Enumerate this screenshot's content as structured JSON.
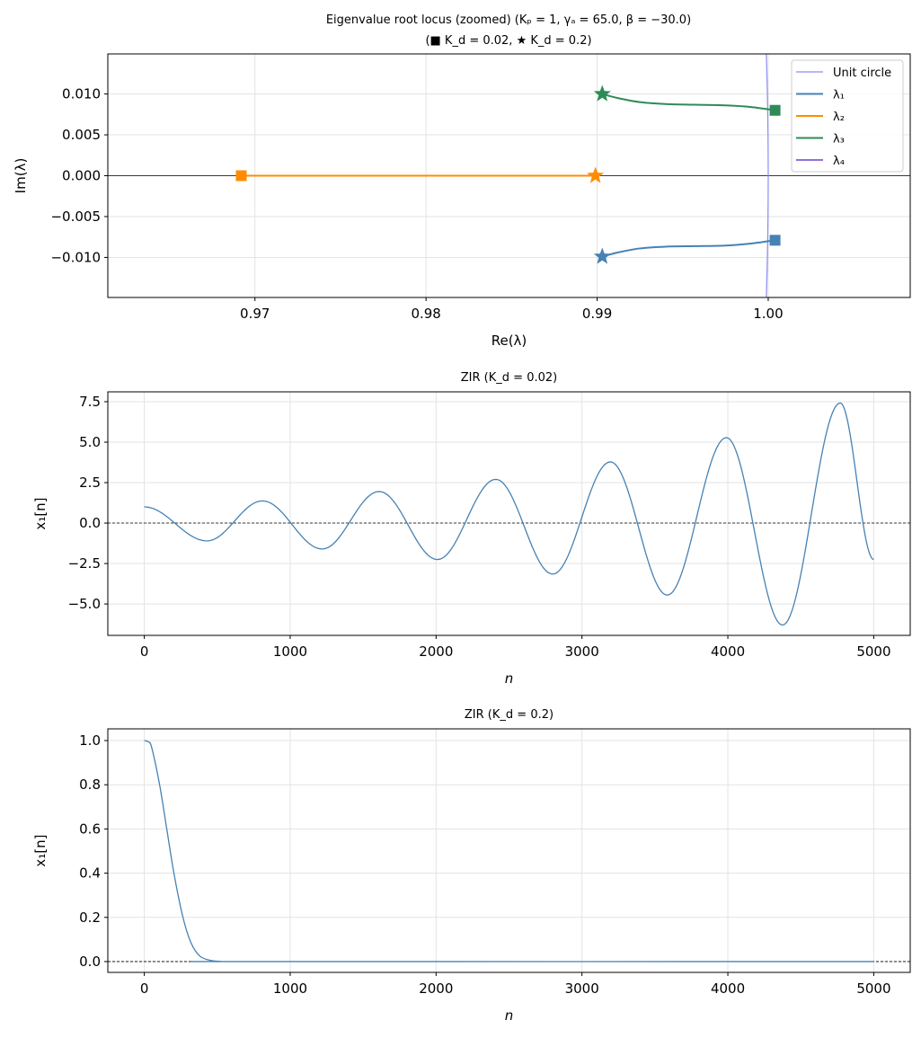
{
  "chart_data": [
    {
      "type": "line",
      "title": "Eigenvalue root locus (zoomed)  (Kₚ = 1, γₐ = 65.0, β = −30.0)",
      "subtitle": "(■ K_d = 0.02,  ★ K_d = 0.2)",
      "xlabel": "Re(λ)",
      "ylabel": "Im(λ)",
      "xlim": [
        0.9614,
        1.0083
      ],
      "ylim": [
        -0.0149,
        0.0149
      ],
      "grid": true,
      "xticks": [
        {
          "v": 0.97,
          "label": "0.97"
        },
        {
          "v": 0.98,
          "label": "0.98"
        },
        {
          "v": 0.99,
          "label": "0.99"
        },
        {
          "v": 1.0,
          "label": "1.00"
        }
      ],
      "yticks": [
        {
          "v": 0.01,
          "label": "0.010"
        },
        {
          "v": 0.005,
          "label": "0.005"
        },
        {
          "v": 0,
          "label": "0.000"
        },
        {
          "v": -0.005,
          "label": "−0.005"
        },
        {
          "v": -0.01,
          "label": "−0.010"
        }
      ],
      "zero_line": "solid",
      "legend_position": "top-right",
      "legend": [
        {
          "name": "Unit circle",
          "color": "#8c8cf0"
        },
        {
          "name": "λ₁",
          "color": "#4682b4"
        },
        {
          "name": "λ₂",
          "color": "#ff8c00"
        },
        {
          "name": "λ₃",
          "color": "#2e8b57"
        },
        {
          "name": "λ₄",
          "color": "#9370db"
        }
      ],
      "series": [
        {
          "name": "Unit circle",
          "color": "#8c8cf0",
          "unit_circle": true
        },
        {
          "name": "λ₁",
          "color": "#4682b4",
          "x": [
            0.9903,
            0.9912,
            0.9925,
            0.994,
            0.9957,
            0.9975,
            0.999,
            1.0004
          ],
          "y": [
            -0.0099,
            -0.0094,
            -0.0089,
            -0.00868,
            -0.00862,
            -0.00855,
            -0.0083,
            -0.0079
          ],
          "start_marker": "star",
          "end_marker": "square"
        },
        {
          "name": "λ₂",
          "color": "#ff8c00",
          "x": [
            0.9899,
            0.9692
          ],
          "y": [
            0,
            0
          ],
          "start_marker": "star",
          "end_marker": "square"
        },
        {
          "name": "λ₃",
          "color": "#2e8b57",
          "x": [
            0.9903,
            0.9912,
            0.9925,
            0.994,
            0.9957,
            0.9975,
            0.999,
            1.0004
          ],
          "y": [
            0.01,
            0.0095,
            0.009,
            0.00877,
            0.00868,
            0.0086,
            0.0084,
            0.008
          ],
          "start_marker": "star",
          "end_marker": "square"
        }
      ]
    },
    {
      "type": "line",
      "title": "ZIR  (K_d = 0.02)",
      "xlabel": "n",
      "ylabel": "x₁[n]",
      "xlim": [
        -250,
        5250
      ],
      "ylim": [
        -6.94,
        8.11
      ],
      "grid": true,
      "xticks": [
        {
          "v": 0,
          "label": "0"
        },
        {
          "v": 1000,
          "label": "1000"
        },
        {
          "v": 2000,
          "label": "2000"
        },
        {
          "v": 3000,
          "label": "3000"
        },
        {
          "v": 4000,
          "label": "4000"
        },
        {
          "v": 5000,
          "label": "5000"
        }
      ],
      "yticks": [
        {
          "v": 7.5,
          "label": "7.5"
        },
        {
          "v": 5,
          "label": "5.0"
        },
        {
          "v": 2.5,
          "label": "2.5"
        },
        {
          "v": 0,
          "label": "0.0"
        },
        {
          "v": -2.5,
          "label": "−2.5"
        },
        {
          "v": -5,
          "label": "−5.0"
        }
      ],
      "zero_line": "dashed",
      "interp": "cosine",
      "series": [
        {
          "name": "x1",
          "color": "#4682b4",
          "x": [
            0,
            430,
            810,
            1220,
            1610,
            2010,
            2410,
            2800,
            3195,
            3585,
            3990,
            4375,
            4770,
            5000
          ],
          "y": [
            1.0,
            -1.1,
            1.37,
            -1.6,
            1.95,
            -2.25,
            2.7,
            -3.15,
            3.78,
            -4.45,
            5.28,
            -6.3,
            7.42,
            -2.25
          ]
        }
      ]
    },
    {
      "type": "line",
      "title": "ZIR  (K_d = 0.2)",
      "xlabel": "n",
      "ylabel": "x₁[n]",
      "xlim": [
        -250,
        5250
      ],
      "ylim": [
        -0.049,
        1.053
      ],
      "grid": true,
      "xticks": [
        {
          "v": 0,
          "label": "0"
        },
        {
          "v": 1000,
          "label": "1000"
        },
        {
          "v": 2000,
          "label": "2000"
        },
        {
          "v": 3000,
          "label": "3000"
        },
        {
          "v": 4000,
          "label": "4000"
        },
        {
          "v": 5000,
          "label": "5000"
        }
      ],
      "yticks": [
        {
          "v": 1,
          "label": "1.0"
        },
        {
          "v": 0.8,
          "label": "0.8"
        },
        {
          "v": 0.6,
          "label": "0.6"
        },
        {
          "v": 0.4,
          "label": "0.4"
        },
        {
          "v": 0.2,
          "label": "0.2"
        },
        {
          "v": 0,
          "label": "0.0"
        }
      ],
      "zero_line": "dashed",
      "interp": "smooth",
      "series": [
        {
          "name": "x1",
          "color": "#4682b4",
          "x": [
            0,
            25,
            50,
            105,
            154,
            203,
            265,
            320,
            380,
            450,
            520,
            700,
            5000
          ],
          "y": [
            1.0,
            0.995,
            0.97,
            0.8,
            0.6,
            0.4,
            0.2,
            0.085,
            0.025,
            0.006,
            0.001,
            0,
            0
          ]
        }
      ]
    }
  ]
}
